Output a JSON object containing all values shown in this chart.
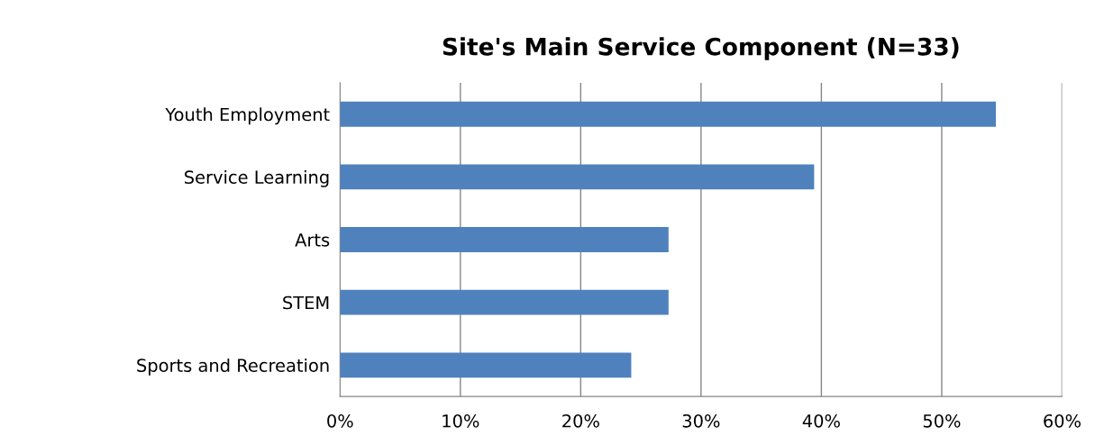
{
  "chart_data": {
    "type": "bar",
    "orientation": "horizontal",
    "title": "Site's Main Service Component (N=33)",
    "categories": [
      "Youth Employment",
      "Service Learning",
      "Arts",
      "STEM",
      "Sports and Recreation"
    ],
    "values": [
      54.5,
      39.4,
      27.3,
      27.3,
      24.2
    ],
    "color": "#4f81bd",
    "xlim": [
      0,
      60
    ],
    "xticks": [
      {
        "value": 0,
        "label": "0%"
      },
      {
        "value": 10,
        "label": "10%"
      },
      {
        "value": 20,
        "label": "20%"
      },
      {
        "value": 30,
        "label": "30%"
      },
      {
        "value": 40,
        "label": "40%"
      },
      {
        "value": 50,
        "label": "50%"
      },
      {
        "value": 60,
        "label": "60%"
      }
    ],
    "grid": "x",
    "legend": false
  }
}
